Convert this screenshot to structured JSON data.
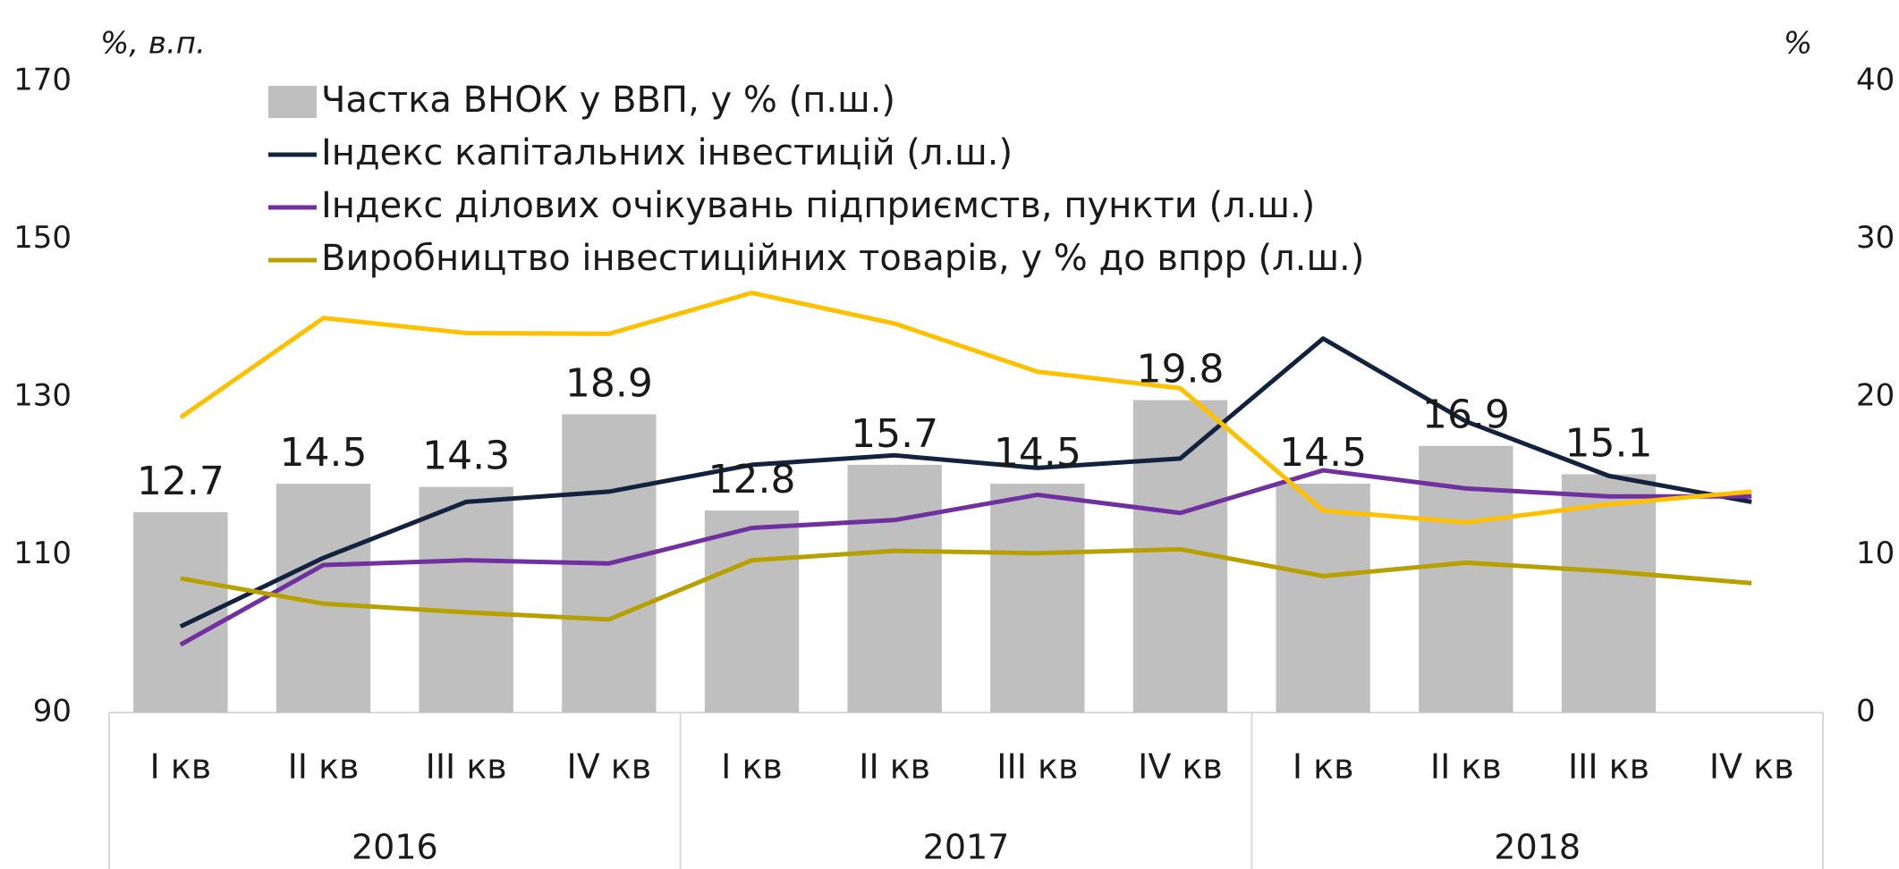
{
  "chart_data": {
    "type": "bar_line",
    "y_unit": "%, в.п.",
    "y2_unit": "%",
    "categories": [
      "I кв",
      "II кв",
      "III кв",
      "IV кв",
      "I кв",
      "II кв",
      "III кв",
      "IV кв",
      "I кв",
      "II кв",
      "III кв",
      "IV кв"
    ],
    "years": [
      "2016",
      "2017",
      "2018"
    ],
    "ylim": [
      90,
      170
    ],
    "yticks": [
      90,
      110,
      130,
      150,
      170
    ],
    "y2lim": [
      0,
      40
    ],
    "y2ticks": [
      0,
      10,
      20,
      30,
      40
    ],
    "series": [
      {
        "name": "Частка ВНОК у ВВП, у % (п.ш.)",
        "type": "bar",
        "axis": "y2",
        "color": "#bfbfbf",
        "values": [
          12.7,
          14.5,
          14.3,
          18.9,
          12.8,
          15.7,
          14.5,
          19.8,
          14.5,
          16.9,
          15.1,
          null
        ]
      },
      {
        "name": "Індекс капітальних інвестицій (л.ш.)",
        "type": "line",
        "color": "#13233f",
        "values": [
          100.9,
          109.6,
          116.7,
          118.0,
          121.4,
          122.6,
          121.0,
          122.2,
          137.4,
          126.9,
          120.0,
          116.7
        ]
      },
      {
        "name": "Індекс ділових очікувань підприємств, пункти (л.ш.)",
        "type": "line",
        "color": "#7030a0",
        "values": [
          98.6,
          108.7,
          109.3,
          108.9,
          113.4,
          114.4,
          117.6,
          115.3,
          120.7,
          118.4,
          117.4,
          117.4
        ]
      },
      {
        "name": "Виробництво інвестиційних товарів, у % до впрр  (л.ш.)",
        "type": "line",
        "color": "#b8a000",
        "values": [
          107.0,
          103.8,
          102.7,
          101.8,
          109.3,
          110.5,
          110.2,
          110.7,
          107.3,
          109.0,
          107.9,
          106.4
        ]
      },
      {
        "type": "line",
        "color": "#ffc000",
        "values": [
          127.4,
          140.0,
          138.1,
          138.0,
          143.2,
          139.3,
          133.2,
          131.1,
          115.6,
          114.1,
          116.4,
          118.0
        ]
      }
    ]
  }
}
